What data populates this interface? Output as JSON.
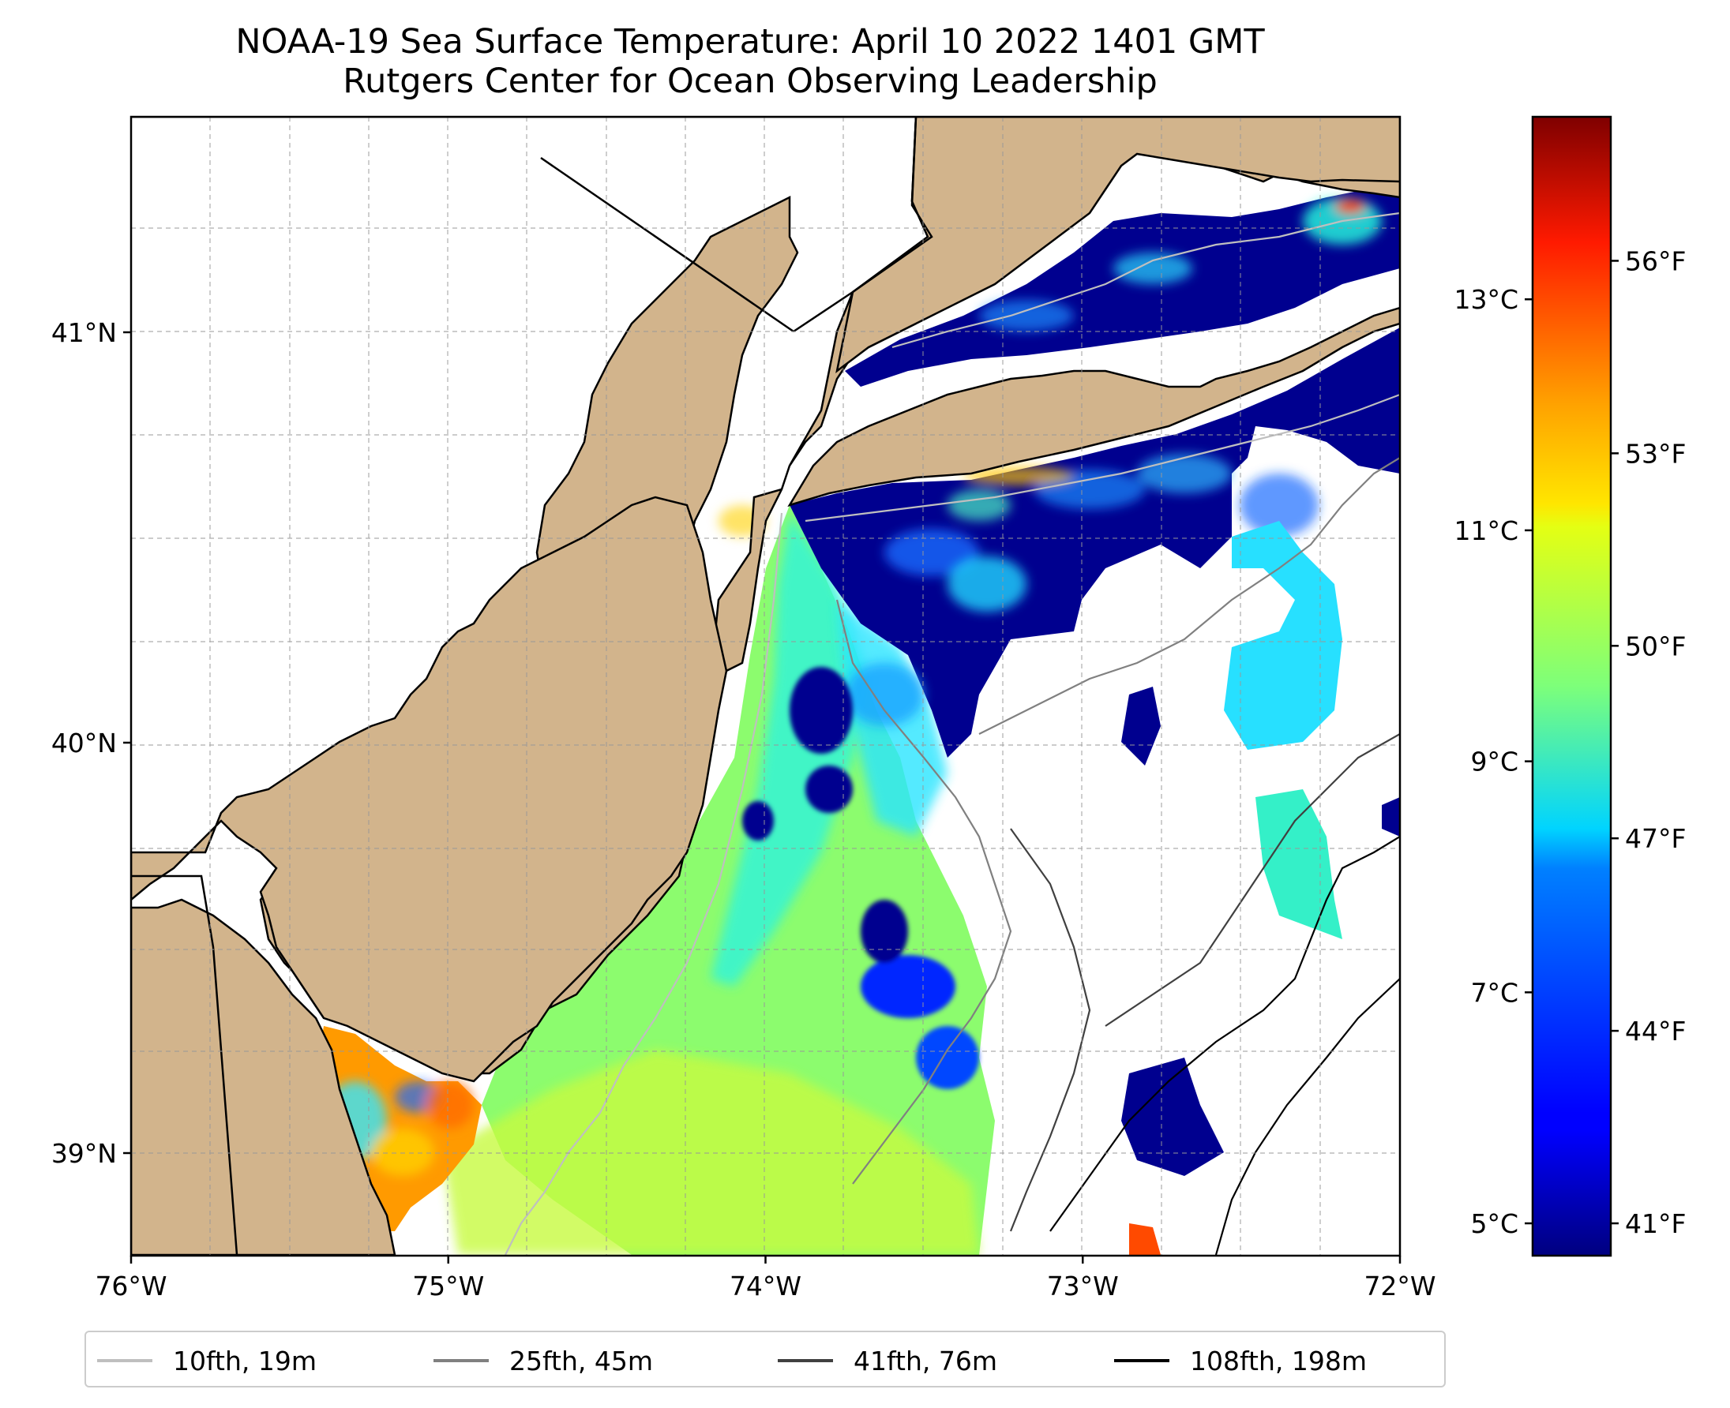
{
  "title": {
    "line1": "NOAA-19 Sea Surface Temperature: April 10 2022 1401 GMT",
    "line2": "Rutgers Center for Ocean Observing Leadership"
  },
  "map": {
    "lon_range": [
      -76,
      -72
    ],
    "lat_range": [
      38.73,
      41.52
    ],
    "land_color": "#d2b48c",
    "coastline_color": "#000000",
    "gridlines": "dashed gray",
    "x_ticks": [
      {
        "value": -76,
        "label": "76°W"
      },
      {
        "value": -75,
        "label": "75°W"
      },
      {
        "value": -74,
        "label": "74°W"
      },
      {
        "value": -73,
        "label": "73°W"
      },
      {
        "value": -72,
        "label": "72°W"
      }
    ],
    "y_ticks": [
      {
        "value": 41,
        "label": "41°N"
      },
      {
        "value": 40,
        "label": "40°N"
      },
      {
        "value": 39,
        "label": "39°N"
      }
    ]
  },
  "colorbar": {
    "colormap": "jet",
    "celsius_ticks": [
      {
        "value": 5,
        "label": "5°C"
      },
      {
        "value": 7,
        "label": "7°C"
      },
      {
        "value": 9,
        "label": "9°C"
      },
      {
        "value": 11,
        "label": "11°C"
      },
      {
        "value": 13,
        "label": "13°C"
      }
    ],
    "fahrenheit_ticks": [
      {
        "value": 41,
        "label": "41°F"
      },
      {
        "value": 44,
        "label": "44°F"
      },
      {
        "value": 47,
        "label": "47°F"
      },
      {
        "value": 50,
        "label": "50°F"
      },
      {
        "value": 53,
        "label": "53°F"
      },
      {
        "value": 56,
        "label": "56°F"
      }
    ]
  },
  "legend": {
    "entries": [
      {
        "label": "10fth, 19m",
        "color": "#bfbfbf"
      },
      {
        "label": "25fth, 45m",
        "color": "#808080"
      },
      {
        "label": "41fth, 76m",
        "color": "#404040"
      },
      {
        "label": "108fth, 198m",
        "color": "#000000"
      }
    ]
  }
}
